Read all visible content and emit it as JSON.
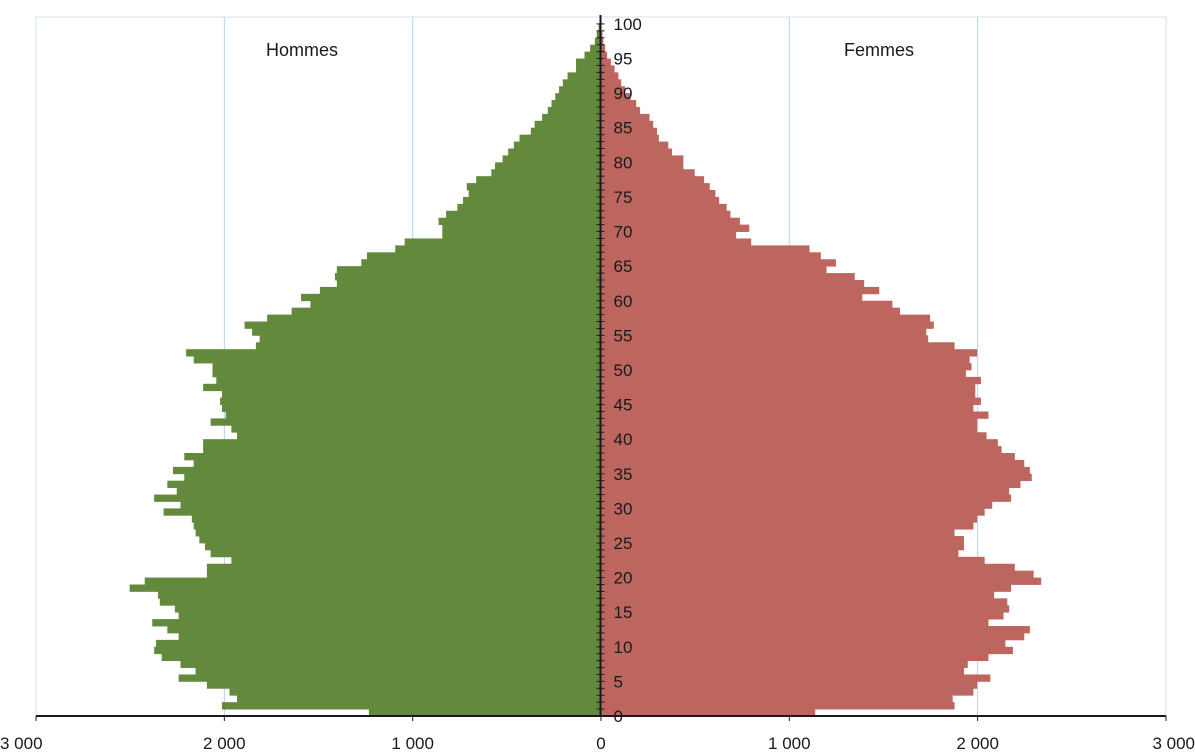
{
  "chart_data": {
    "type": "bar",
    "orientation": "horizontal-population-pyramid",
    "title": "",
    "series": [
      {
        "name": "Hommes",
        "color": "#638a3c",
        "side": "left",
        "values": [
          1230,
          2010,
          1930,
          1970,
          2090,
          2240,
          2150,
          2230,
          2330,
          2370,
          2360,
          2240,
          2300,
          2380,
          2240,
          2260,
          2340,
          2350,
          2500,
          2420,
          2090,
          2090,
          1960,
          2070,
          2100,
          2130,
          2150,
          2160,
          2170,
          2320,
          2230,
          2370,
          2250,
          2300,
          2210,
          2270,
          2160,
          2210,
          2110,
          2110,
          1930,
          1960,
          2070,
          1990,
          2010,
          2020,
          2010,
          2110,
          2040,
          2060,
          2060,
          2160,
          2200,
          1830,
          1810,
          1850,
          1890,
          1770,
          1640,
          1540,
          1590,
          1490,
          1400,
          1410,
          1400,
          1270,
          1240,
          1090,
          1040,
          840,
          840,
          860,
          820,
          760,
          730,
          700,
          710,
          660,
          580,
          560,
          520,
          490,
          460,
          430,
          370,
          350,
          310,
          280,
          260,
          240,
          220,
          200,
          175,
          130,
          130,
          85,
          55,
          30,
          20,
          10,
          5
        ]
      },
      {
        "name": "Femmes",
        "color": "#bd6660",
        "side": "right",
        "values": [
          1140,
          1880,
          1870,
          1980,
          2000,
          2070,
          1930,
          1950,
          2060,
          2190,
          2150,
          2250,
          2280,
          2060,
          2140,
          2170,
          2160,
          2090,
          2180,
          2340,
          2300,
          2200,
          2040,
          1900,
          1930,
          1930,
          1880,
          1980,
          2000,
          2040,
          2080,
          2180,
          2170,
          2230,
          2290,
          2280,
          2250,
          2200,
          2130,
          2110,
          2050,
          2000,
          2000,
          2060,
          1980,
          2020,
          1990,
          1990,
          2020,
          1940,
          1970,
          1960,
          2000,
          1880,
          1740,
          1730,
          1770,
          1750,
          1590,
          1550,
          1390,
          1480,
          1400,
          1350,
          1200,
          1250,
          1170,
          1110,
          800,
          720,
          790,
          740,
          690,
          670,
          630,
          610,
          580,
          550,
          500,
          440,
          440,
          380,
          360,
          310,
          300,
          280,
          260,
          210,
          190,
          160,
          130,
          110,
          95,
          75,
          55,
          35,
          25,
          15,
          10,
          5,
          3
        ]
      }
    ],
    "side_labels": [
      "Hommes",
      "Femmes"
    ],
    "x_tick_labels": [
      "3 000",
      "2 000",
      "1 000",
      "0",
      "1 000",
      "2 000",
      "3 000"
    ],
    "x_tick_values": [
      -3000,
      -2000,
      -1000,
      0,
      1000,
      2000,
      3000
    ],
    "xlim": [
      -3000,
      3000
    ],
    "age_ticks": [
      0,
      5,
      10,
      15,
      20,
      25,
      30,
      35,
      40,
      45,
      50,
      55,
      60,
      65,
      70,
      75,
      80,
      85,
      90,
      95,
      100
    ],
    "age_range": [
      0,
      100
    ],
    "grid": "vertical"
  }
}
